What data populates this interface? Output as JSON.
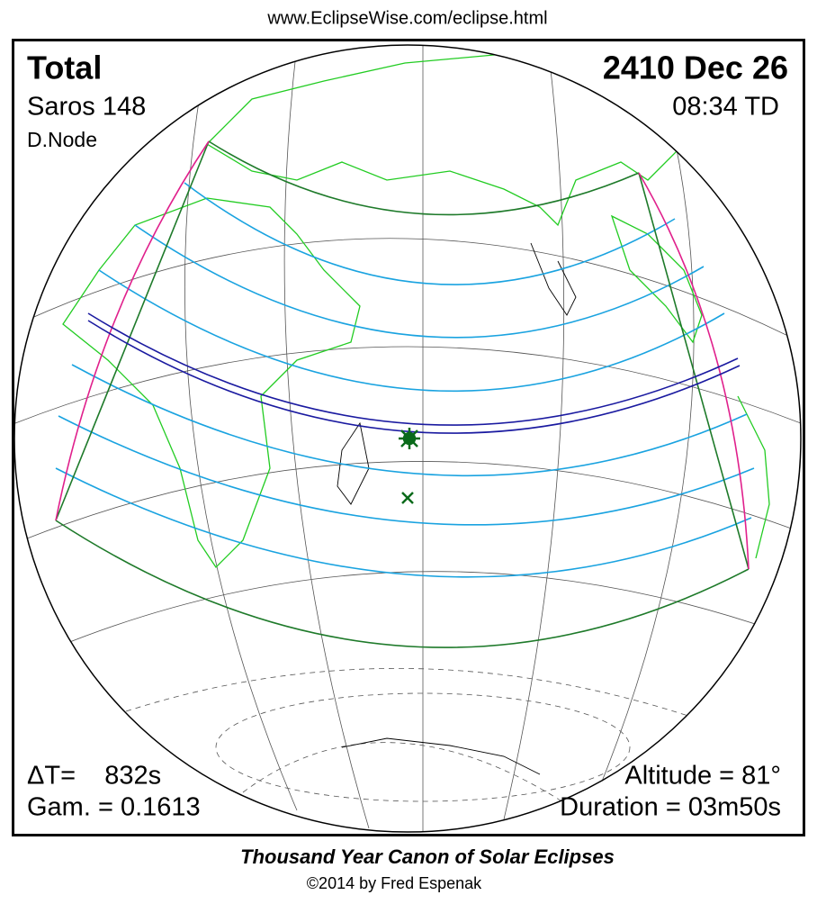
{
  "header": {
    "url": "www.EclipseWise.com/eclipse.html"
  },
  "eclipse": {
    "type": "Total",
    "date": "2410 Dec 26",
    "saros": "Saros 148",
    "time": "08:34 TD",
    "node": "D.Node",
    "delta_t": "ΔT=    832s",
    "gamma": "Gam. = 0.1613",
    "altitude": "Altitude = 81°",
    "duration": "Duration = 03m50s"
  },
  "footer": {
    "title": "Thousand Year Canon of Solar Eclipses",
    "credit": "©2014 by Fred Espenak"
  }
}
